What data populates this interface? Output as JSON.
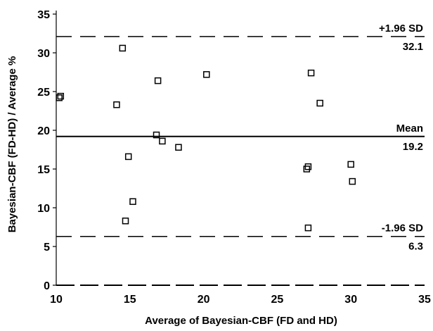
{
  "chart_data": {
    "type": "scatter",
    "title": "",
    "xlabel": "Average of Bayesian-CBF (FD and HD)",
    "ylabel": "Bayesian-CBF (FD-HD) / Average %",
    "xlim": [
      10,
      35
    ],
    "ylim": [
      0,
      35
    ],
    "xticks": [
      "10",
      "15",
      "20",
      "25",
      "30",
      "35"
    ],
    "yticks": [
      "0",
      "5",
      "10",
      "15",
      "20",
      "25",
      "30",
      "35"
    ],
    "grid": false,
    "points": [
      {
        "x": 10.2,
        "y": 24.2
      },
      {
        "x": 10.3,
        "y": 24.4
      },
      {
        "x": 14.1,
        "y": 23.3
      },
      {
        "x": 14.5,
        "y": 30.6
      },
      {
        "x": 14.7,
        "y": 8.3
      },
      {
        "x": 14.9,
        "y": 16.6
      },
      {
        "x": 15.2,
        "y": 10.8
      },
      {
        "x": 16.8,
        "y": 19.4
      },
      {
        "x": 16.9,
        "y": 26.4
      },
      {
        "x": 17.2,
        "y": 18.6
      },
      {
        "x": 18.3,
        "y": 17.8
      },
      {
        "x": 20.2,
        "y": 27.2
      },
      {
        "x": 27.0,
        "y": 15.0
      },
      {
        "x": 27.1,
        "y": 15.3
      },
      {
        "x": 27.1,
        "y": 7.4
      },
      {
        "x": 27.3,
        "y": 27.4
      },
      {
        "x": 27.9,
        "y": 23.5
      },
      {
        "x": 30.0,
        "y": 15.6
      },
      {
        "x": 30.1,
        "y": 13.4
      }
    ],
    "reference_lines": [
      {
        "label": "+1.96 SD",
        "value": 32.1,
        "value_label": "32.1",
        "style": "dashed"
      },
      {
        "label": "Mean",
        "value": 19.2,
        "value_label": "19.2",
        "style": "solid"
      },
      {
        "label": "-1.96 SD",
        "value": 6.3,
        "value_label": "6.3",
        "style": "dashed"
      }
    ],
    "marker": "hollow-square",
    "colors": {
      "ink": "#000000",
      "background": "#ffffff"
    }
  }
}
